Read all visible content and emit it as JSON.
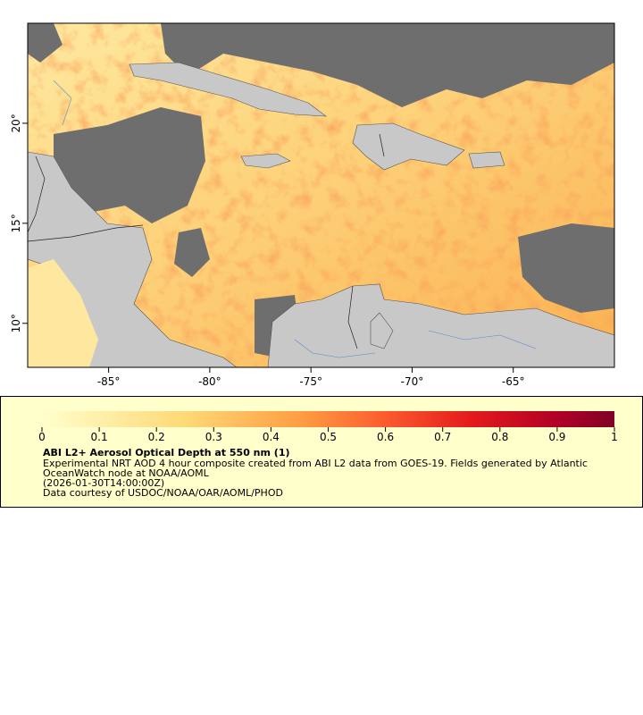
{
  "map": {
    "xlim": [
      -89,
      -60
    ],
    "ylim": [
      7.8,
      25
    ],
    "xticks": [
      {
        "value": -85,
        "label": "-85°"
      },
      {
        "value": -80,
        "label": "-80°"
      },
      {
        "value": -75,
        "label": "-75°"
      },
      {
        "value": -70,
        "label": "-70°"
      },
      {
        "value": -65,
        "label": "-65°"
      }
    ],
    "yticks": [
      {
        "value": 10,
        "label": "10°"
      },
      {
        "value": 15,
        "label": "15°"
      },
      {
        "value": 20,
        "label": "20°"
      }
    ]
  },
  "colorbar": {
    "lim": [
      0,
      1
    ],
    "ticks": [
      0,
      0.1,
      0.2,
      0.3,
      0.4,
      0.5,
      0.6,
      0.7,
      0.8,
      0.9,
      1
    ]
  },
  "legend": {
    "title": "ABI L2+ Aerosol Optical Depth at 550 nm (1)",
    "lines": [
      "Experimental NRT AOD 4 hour composite created from ABI L2 data from GOES-19. Fields generated by Atlantic",
      "OceanWatch node at NOAA/AOML",
      "(2026-01-30T14:00:00Z)",
      "Data courtesy of USDOC/NOAA/OAR/AOML/PHOD"
    ]
  }
}
